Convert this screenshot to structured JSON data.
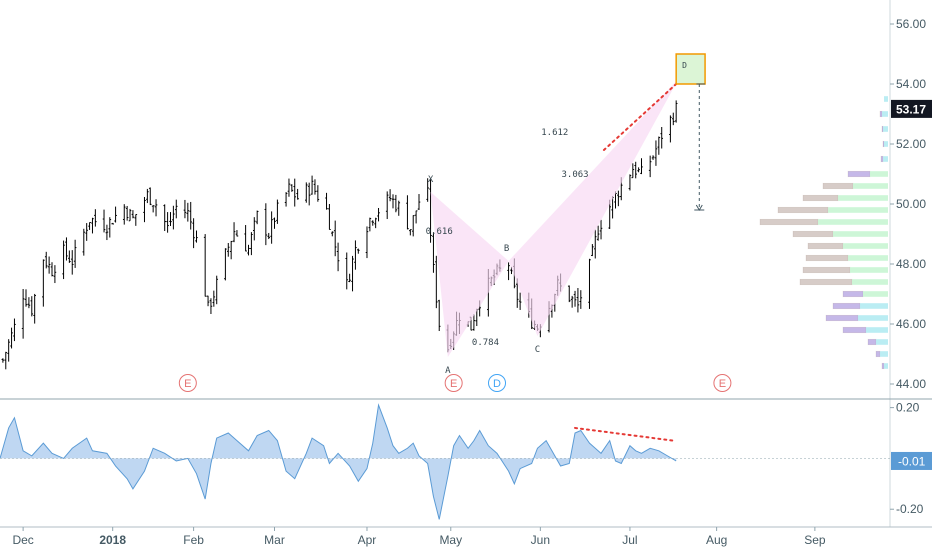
{
  "chart_data": [
    {
      "type": "candlestick",
      "title": "",
      "ylim": [
        43.5,
        56.8
      ],
      "yticks": [
        "56.00",
        "54.00",
        "52.00",
        "50.00",
        "48.00",
        "46.00",
        "44.00"
      ],
      "ytick_values": [
        56,
        54,
        52,
        50,
        48,
        46,
        44
      ],
      "last_price": "53.17",
      "last_price_value": 53.17,
      "xlim": [
        "2017-11-26",
        "2018-09-30"
      ],
      "x_tick_labels": [
        "Dec",
        "2018",
        "Feb",
        "Mar",
        "Apr",
        "May",
        "Jun",
        "Jul",
        "Aug",
        "Sep"
      ],
      "x_tick_dates": [
        "2017-12-04",
        "2018-01-04",
        "2018-02-01",
        "2018-03-01",
        "2018-04-02",
        "2018-05-01",
        "2018-06-01",
        "2018-07-02",
        "2018-08-01",
        "2018-09-04"
      ],
      "close_path": [
        [
          "2017-11-27",
          44.8
        ],
        [
          "2017-12-01",
          45.9
        ],
        [
          "2017-12-04",
          47.0
        ],
        [
          "2017-12-07",
          46.5
        ],
        [
          "2017-12-11",
          48.2
        ],
        [
          "2017-12-14",
          47.8
        ],
        [
          "2017-12-18",
          48.4
        ],
        [
          "2017-12-21",
          48.1
        ],
        [
          "2017-12-27",
          49.5
        ],
        [
          "2018-01-02",
          49.3
        ],
        [
          "2018-01-08",
          49.9
        ],
        [
          "2018-01-11",
          49.5
        ],
        [
          "2018-01-16",
          50.3
        ],
        [
          "2018-01-19",
          50.0
        ],
        [
          "2018-01-23",
          49.2
        ],
        [
          "2018-01-26",
          49.9
        ],
        [
          "2018-01-30",
          49.7
        ],
        [
          "2018-02-02",
          48.8
        ],
        [
          "2018-02-06",
          46.5
        ],
        [
          "2018-02-08",
          47.0
        ],
        [
          "2018-02-12",
          48.3
        ],
        [
          "2018-02-15",
          49.1
        ],
        [
          "2018-02-20",
          48.5
        ],
        [
          "2018-02-23",
          49.6
        ],
        [
          "2018-02-27",
          49.0
        ],
        [
          "2018-03-02",
          49.8
        ],
        [
          "2018-03-06",
          50.5
        ],
        [
          "2018-03-09",
          50.2
        ],
        [
          "2018-03-14",
          50.6
        ],
        [
          "2018-03-19",
          49.8
        ],
        [
          "2018-03-22",
          48.6
        ],
        [
          "2018-03-26",
          47.3
        ],
        [
          "2018-03-29",
          48.5
        ],
        [
          "2018-04-03",
          49.5
        ],
        [
          "2018-04-06",
          49.8
        ],
        [
          "2018-04-10",
          50.2
        ],
        [
          "2018-04-13",
          49.9
        ],
        [
          "2018-04-17",
          49.2
        ],
        [
          "2018-04-20",
          50.1
        ],
        [
          "2018-04-23",
          50.3
        ],
        [
          "2018-04-25",
          47.8
        ],
        [
          "2018-04-27",
          46.0
        ],
        [
          "2018-04-30",
          45.2
        ],
        [
          "2018-05-02",
          45.8
        ],
        [
          "2018-05-04",
          46.3
        ],
        [
          "2018-05-08",
          45.9
        ],
        [
          "2018-05-10",
          46.6
        ],
        [
          "2018-05-14",
          47.3
        ],
        [
          "2018-05-17",
          47.7
        ],
        [
          "2018-05-21",
          48.0
        ],
        [
          "2018-05-23",
          47.1
        ],
        [
          "2018-05-25",
          46.7
        ],
        [
          "2018-05-29",
          46.1
        ],
        [
          "2018-05-31",
          45.9
        ],
        [
          "2018-06-04",
          46.6
        ],
        [
          "2018-06-07",
          47.3
        ],
        [
          "2018-06-11",
          46.9
        ],
        [
          "2018-06-14",
          46.6
        ],
        [
          "2018-06-18",
          47.9
        ],
        [
          "2018-06-21",
          49.2
        ],
        [
          "2018-06-26",
          50.1
        ],
        [
          "2018-06-29",
          50.6
        ],
        [
          "2018-07-03",
          51.2
        ],
        [
          "2018-07-06",
          51.0
        ],
        [
          "2018-07-10",
          51.6
        ],
        [
          "2018-07-13",
          52.3
        ],
        [
          "2018-07-16",
          52.8
        ],
        [
          "2018-07-18",
          53.17
        ]
      ],
      "pattern_label_values": [
        "0.616",
        "0.784",
        "3.063",
        "1.612"
      ],
      "pattern_points": [
        {
          "name": "X",
          "date": "2018-04-24",
          "price": 50.4
        },
        {
          "name": "A",
          "date": "2018-04-30",
          "price": 44.9
        },
        {
          "name": "B",
          "date": "2018-05-21",
          "price": 48.1
        },
        {
          "name": "C",
          "date": "2018-05-31",
          "price": 45.6
        },
        {
          "name": "D",
          "date": "2018-07-19",
          "price": 54.2
        }
      ],
      "pattern_ratios": [
        {
          "label": "0.616",
          "date": "2018-04-27",
          "price": 49.0
        },
        {
          "label": "0.784",
          "date": "2018-05-13",
          "price": 45.3
        },
        {
          "label": "3.063",
          "date": "2018-06-13",
          "price": 50.9
        },
        {
          "label": "1.612",
          "date": "2018-06-06",
          "price": 52.3
        }
      ],
      "earnings_markers": [
        {
          "label": "E",
          "date": "2018-01-30",
          "color": "#e57373"
        },
        {
          "label": "E",
          "date": "2018-05-02",
          "color": "#e57373"
        },
        {
          "label": "D",
          "date": "2018-05-17",
          "color": "#42a5f5"
        },
        {
          "label": "E",
          "date": "2018-08-03",
          "color": "#e57373"
        }
      ],
      "target_box": {
        "date_from": "2018-07-18",
        "date_to": "2018-07-28",
        "price_from": 54.0,
        "price_to": 55.0,
        "label": "D"
      },
      "target_arrow": {
        "date": "2018-07-26",
        "price_from": 54.0,
        "price_to": 49.8
      },
      "volume_profile": {
        "up_color": "#c8f5d3",
        "down_color": "#d7ccc8",
        "value_area_color": "#c5b8e8",
        "cyan_color": "#b2ebf2",
        "rows": [
          {
            "price": 53.5,
            "total": 4,
            "up": 4
          },
          {
            "price": 53.0,
            "total": 8,
            "up": 6
          },
          {
            "price": 52.5,
            "total": 6,
            "up": 5
          },
          {
            "price": 52.0,
            "total": 5,
            "up": 4
          },
          {
            "price": 51.5,
            "total": 7,
            "up": 5
          },
          {
            "price": 51.0,
            "total": 40,
            "up": 18
          },
          {
            "price": 50.6,
            "total": 65,
            "up": 35
          },
          {
            "price": 50.2,
            "total": 85,
            "up": 50
          },
          {
            "price": 49.8,
            "total": 110,
            "up": 60
          },
          {
            "price": 49.4,
            "total": 128,
            "up": 70
          },
          {
            "price": 49.0,
            "total": 95,
            "up": 55
          },
          {
            "price": 48.6,
            "total": 80,
            "up": 45
          },
          {
            "price": 48.2,
            "total": 82,
            "up": 40
          },
          {
            "price": 47.8,
            "total": 85,
            "up": 38
          },
          {
            "price": 47.4,
            "total": 88,
            "up": 36
          },
          {
            "price": 47.0,
            "total": 45,
            "up": 25
          },
          {
            "price": 46.6,
            "total": 55,
            "up": 28
          },
          {
            "price": 46.2,
            "total": 62,
            "up": 30
          },
          {
            "price": 45.8,
            "total": 45,
            "up": 22
          },
          {
            "price": 45.4,
            "total": 20,
            "up": 12
          },
          {
            "price": 45.0,
            "total": 12,
            "up": 8
          },
          {
            "price": 44.6,
            "total": 6,
            "up": 4
          }
        ]
      }
    },
    {
      "type": "area",
      "title": "",
      "ylim": [
        -0.27,
        0.23
      ],
      "yticks": [
        "0.20",
        "-0.20"
      ],
      "ytick_values": [
        0.2,
        -0.2
      ],
      "last_value": "-0.01",
      "fill_color": "#a9c9ee",
      "line_color": "#5b9bd5",
      "values": [
        [
          "2017-11-26",
          0.0
        ],
        [
          "2017-11-29",
          0.12
        ],
        [
          "2017-12-01",
          0.16
        ],
        [
          "2017-12-04",
          0.03
        ],
        [
          "2017-12-07",
          0.01
        ],
        [
          "2017-12-11",
          0.06
        ],
        [
          "2017-12-14",
          0.02
        ],
        [
          "2017-12-18",
          0.0
        ],
        [
          "2017-12-21",
          0.04
        ],
        [
          "2017-12-26",
          0.08
        ],
        [
          "2017-12-28",
          0.03
        ],
        [
          "2018-01-02",
          0.02
        ],
        [
          "2018-01-05",
          -0.03
        ],
        [
          "2018-01-09",
          -0.08
        ],
        [
          "2018-01-11",
          -0.12
        ],
        [
          "2018-01-15",
          -0.05
        ],
        [
          "2018-01-18",
          0.04
        ],
        [
          "2018-01-22",
          0.02
        ],
        [
          "2018-01-26",
          -0.01
        ],
        [
          "2018-01-30",
          0.0
        ],
        [
          "2018-02-02",
          -0.06
        ],
        [
          "2018-02-05",
          -0.16
        ],
        [
          "2018-02-07",
          -0.02
        ],
        [
          "2018-02-09",
          0.08
        ],
        [
          "2018-02-13",
          0.1
        ],
        [
          "2018-02-16",
          0.07
        ],
        [
          "2018-02-20",
          0.03
        ],
        [
          "2018-02-23",
          0.09
        ],
        [
          "2018-02-27",
          0.11
        ],
        [
          "2018-03-02",
          0.07
        ],
        [
          "2018-03-05",
          -0.05
        ],
        [
          "2018-03-08",
          -0.08
        ],
        [
          "2018-03-12",
          0.02
        ],
        [
          "2018-03-14",
          0.08
        ],
        [
          "2018-03-18",
          0.05
        ],
        [
          "2018-03-20",
          -0.02
        ],
        [
          "2018-03-23",
          0.02
        ],
        [
          "2018-03-27",
          -0.03
        ],
        [
          "2018-03-30",
          -0.09
        ],
        [
          "2018-04-02",
          -0.04
        ],
        [
          "2018-04-04",
          0.06
        ],
        [
          "2018-04-06",
          0.21
        ],
        [
          "2018-04-09",
          0.12
        ],
        [
          "2018-04-11",
          0.05
        ],
        [
          "2018-04-13",
          0.02
        ],
        [
          "2018-04-16",
          0.04
        ],
        [
          "2018-04-18",
          0.06
        ],
        [
          "2018-04-20",
          0.01
        ],
        [
          "2018-04-23",
          -0.02
        ],
        [
          "2018-04-25",
          -0.15
        ],
        [
          "2018-04-27",
          -0.24
        ],
        [
          "2018-04-30",
          -0.07
        ],
        [
          "2018-05-02",
          0.05
        ],
        [
          "2018-05-04",
          0.09
        ],
        [
          "2018-05-07",
          0.04
        ],
        [
          "2018-05-09",
          0.07
        ],
        [
          "2018-05-11",
          0.11
        ],
        [
          "2018-05-14",
          0.05
        ],
        [
          "2018-05-17",
          0.02
        ],
        [
          "2018-05-21",
          -0.05
        ],
        [
          "2018-05-23",
          -0.1
        ],
        [
          "2018-05-25",
          -0.04
        ],
        [
          "2018-05-29",
          -0.02
        ],
        [
          "2018-05-31",
          0.04
        ],
        [
          "2018-06-03",
          0.07
        ],
        [
          "2018-06-05",
          0.03
        ],
        [
          "2018-06-08",
          -0.03
        ],
        [
          "2018-06-11",
          -0.02
        ],
        [
          "2018-06-13",
          0.1
        ],
        [
          "2018-06-15",
          0.11
        ],
        [
          "2018-06-18",
          0.06
        ],
        [
          "2018-06-20",
          0.04
        ],
        [
          "2018-06-22",
          0.02
        ],
        [
          "2018-06-25",
          0.07
        ],
        [
          "2018-06-27",
          -0.01
        ],
        [
          "2018-06-29",
          -0.02
        ],
        [
          "2018-07-02",
          0.05
        ],
        [
          "2018-07-04",
          0.03
        ],
        [
          "2018-07-06",
          0.02
        ],
        [
          "2018-07-09",
          0.04
        ],
        [
          "2018-07-12",
          0.03
        ],
        [
          "2018-07-15",
          0.01
        ],
        [
          "2018-07-18",
          -0.01
        ]
      ],
      "divergence_line": {
        "from": [
          "2018-06-13",
          0.12
        ],
        "to": [
          "2018-07-17",
          0.07
        ]
      }
    }
  ]
}
